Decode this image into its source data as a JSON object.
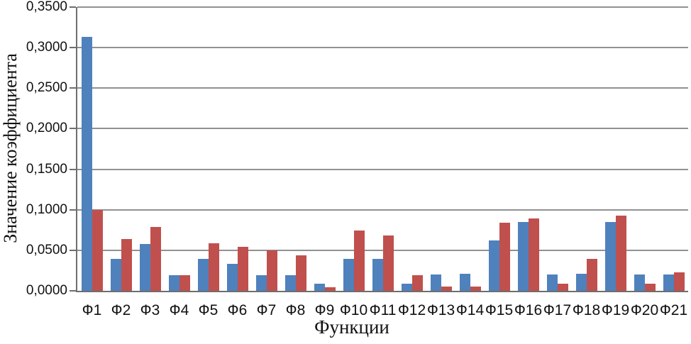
{
  "chart_data": {
    "type": "bar",
    "title": "",
    "xlabel": "Функции",
    "ylabel": "Значение коэффициента",
    "categories": [
      "Ф1",
      "Ф2",
      "Ф3",
      "Ф4",
      "Ф5",
      "Ф6",
      "Ф7",
      "Ф8",
      "Ф9",
      "Ф10",
      "Ф11",
      "Ф12",
      "Ф13",
      "Ф14",
      "Ф15",
      "Ф16",
      "Ф17",
      "Ф18",
      "Ф19",
      "Ф20",
      "Ф21"
    ],
    "series": [
      {
        "color": "#4F81BD",
        "values": [
          0.313,
          0.039,
          0.058,
          0.019,
          0.039,
          0.033,
          0.019,
          0.019,
          0.009,
          0.039,
          0.039,
          0.009,
          0.02,
          0.021,
          0.062,
          0.085,
          0.02,
          0.021,
          0.085,
          0.02,
          0.02
        ]
      },
      {
        "color": "#C0504D",
        "values": [
          0.1,
          0.064,
          0.079,
          0.019,
          0.059,
          0.054,
          0.05,
          0.044,
          0.004,
          0.074,
          0.068,
          0.019,
          0.005,
          0.005,
          0.084,
          0.089,
          0.009,
          0.039,
          0.093,
          0.009,
          0.023
        ]
      }
    ],
    "ylim": [
      0,
      0.35
    ],
    "ytick_step": 0.05,
    "ytick_labels": [
      "0,0000",
      "0,0500",
      "0,1000",
      "0,1500",
      "0,2000",
      "0,2500",
      "0,3000",
      "0,3500"
    ],
    "grid": true,
    "legend": false,
    "decimal_separator": ","
  },
  "colors": {
    "background": "#ffffff",
    "gridline": "#919191",
    "axis_line": "#6e6e6e",
    "text": "#111111",
    "bar_series_1": "#4F81BD",
    "bar_series_2": "#C0504D"
  }
}
